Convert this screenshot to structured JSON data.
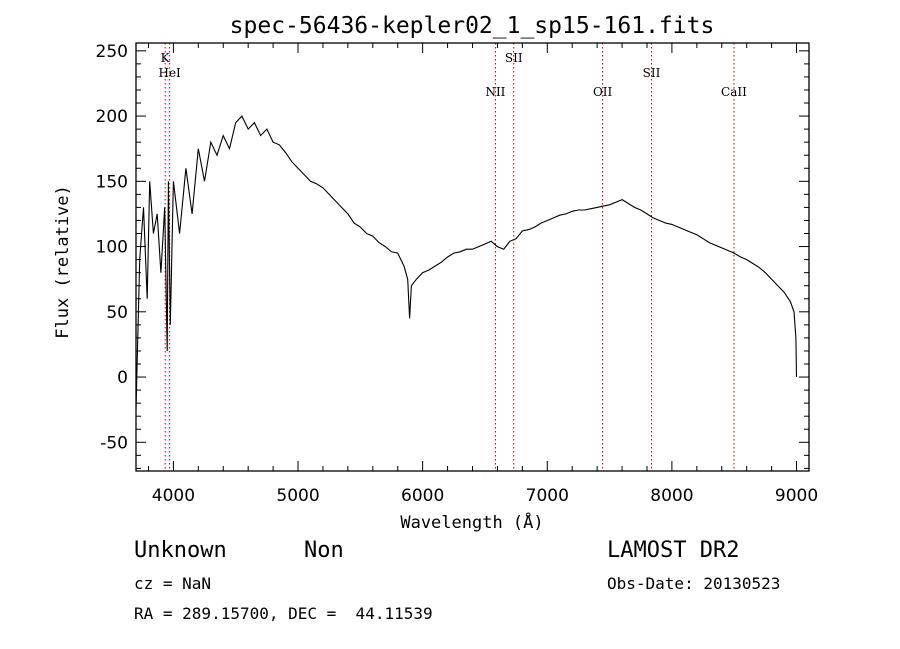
{
  "chart_data": {
    "type": "line",
    "title": "spec-56436-kepler02_1_sp15-161.fits",
    "xlabel": "Wavelength (Å)",
    "ylabel": "Flux (relative)",
    "xlim": [
      3700,
      9100
    ],
    "ylim": [
      -72,
      256
    ],
    "x_ticks": [
      4000,
      5000,
      6000,
      7000,
      8000,
      9000
    ],
    "y_ticks": [
      -50,
      0,
      50,
      100,
      150,
      200,
      250
    ],
    "spectral_lines": [
      {
        "name": "K",
        "x": 3934
      },
      {
        "name": "HeI",
        "x": 3970
      },
      {
        "name": "NII",
        "x": 6584
      },
      {
        "name": "SII",
        "x": 6731
      },
      {
        "name": "OII",
        "x": 7444
      },
      {
        "name": "SII",
        "x": 7836
      },
      {
        "name": "CaII",
        "x": 8498
      }
    ],
    "series": [
      {
        "x": [
          3700,
          3730,
          3760,
          3790,
          3810,
          3840,
          3870,
          3900,
          3930,
          3950,
          3960,
          3975,
          4000,
          4050,
          4100,
          4150,
          4200,
          4250,
          4300,
          4350,
          4400,
          4450,
          4500,
          4550,
          4600,
          4650,
          4700,
          4750,
          4800,
          4850,
          4900,
          4950,
          5000,
          5050,
          5100,
          5150,
          5200,
          5250,
          5300,
          5350,
          5400,
          5450,
          5500,
          5550,
          5600,
          5650,
          5700,
          5750,
          5800,
          5850,
          5880,
          5895,
          5910,
          5950,
          6000,
          6050,
          6100,
          6150,
          6200,
          6250,
          6300,
          6350,
          6400,
          6450,
          6500,
          6550,
          6600,
          6650,
          6700,
          6750,
          6800,
          6850,
          6900,
          6950,
          7000,
          7050,
          7100,
          7150,
          7200,
          7250,
          7300,
          7350,
          7400,
          7450,
          7500,
          7550,
          7600,
          7650,
          7700,
          7750,
          7800,
          7850,
          7900,
          7950,
          8000,
          8050,
          8100,
          8150,
          8200,
          8250,
          8300,
          8350,
          8400,
          8450,
          8500,
          8550,
          8600,
          8650,
          8700,
          8750,
          8800,
          8850,
          8900,
          8950,
          8980,
          8995,
          9000
        ],
        "y": [
          -25,
          90,
          130,
          60,
          150,
          110,
          125,
          80,
          130,
          20,
          150,
          40,
          150,
          110,
          160,
          125,
          175,
          150,
          180,
          170,
          185,
          175,
          195,
          200,
          190,
          195,
          185,
          190,
          180,
          178,
          172,
          165,
          160,
          155,
          150,
          148,
          145,
          140,
          135,
          130,
          125,
          118,
          115,
          110,
          108,
          103,
          100,
          96,
          95,
          85,
          75,
          45,
          70,
          75,
          80,
          82,
          85,
          88,
          92,
          95,
          96,
          98,
          98,
          100,
          102,
          104,
          100,
          98,
          104,
          106,
          112,
          113,
          115,
          118,
          120,
          122,
          124,
          125,
          127,
          128,
          128,
          129,
          130,
          131,
          132,
          134,
          136,
          133,
          130,
          128,
          125,
          122,
          120,
          118,
          117,
          115,
          113,
          111,
          109,
          106,
          103,
          101,
          99,
          97,
          95,
          92,
          90,
          87,
          84,
          80,
          75,
          70,
          65,
          58,
          50,
          30,
          0
        ]
      }
    ]
  },
  "info": {
    "object_class": "Unknown",
    "subclass": "Non",
    "survey": "LAMOST DR2",
    "redshift": "cz = NaN",
    "obs_date": "Obs-Date: 20130523",
    "coords": "RA = 289.15700, DEC =  44.11539"
  },
  "colors": {
    "spectrum": "#000000",
    "marker_lines": "#b00000",
    "frame": "#000000"
  }
}
